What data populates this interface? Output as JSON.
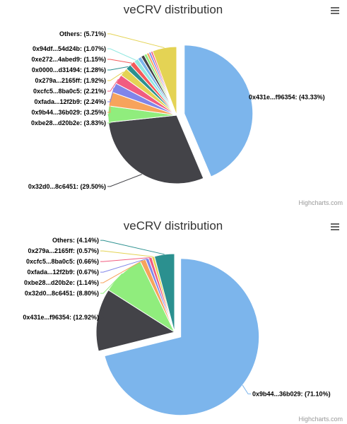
{
  "charts": [
    {
      "title": "veCRV distribution",
      "credit": "Highcharts.com",
      "menu_icon": "hamburger-menu-icon",
      "chart_data": {
        "type": "pie",
        "title": "veCRV distribution",
        "slices": [
          {
            "name": "0x431e...f96354",
            "value": 43.33,
            "color": "#7cb5ec",
            "sliced": true
          },
          {
            "name": "0x32d0...8c6451",
            "value": 29.5,
            "color": "#434348"
          },
          {
            "name": "0xbe28...d20b2e",
            "value": 3.83,
            "color": "#90ed7d"
          },
          {
            "name": "0x9b44...36b029",
            "value": 3.25,
            "color": "#f7a35c"
          },
          {
            "name": "0xfada...12f2b9",
            "value": 2.24,
            "color": "#8085e9"
          },
          {
            "name": "0xcfc5...8ba0c5",
            "value": 2.21,
            "color": "#f15c80"
          },
          {
            "name": "0x279a...2165ff",
            "value": 1.92,
            "color": "#e4d354"
          },
          {
            "name": "0x0000...d31494",
            "value": 1.28,
            "color": "#2b908f"
          },
          {
            "name": "0xe272...4abed9",
            "value": 1.15,
            "color": "#f45b5b"
          },
          {
            "name": "0x94df...54d24b",
            "value": 1.07,
            "color": "#91e8e1"
          },
          {
            "name": "",
            "value": 0.9,
            "color": "#7cb5ec"
          },
          {
            "name": "",
            "value": 0.8,
            "color": "#434348"
          },
          {
            "name": "",
            "value": 0.65,
            "color": "#90ed7d"
          },
          {
            "name": "",
            "value": 0.55,
            "color": "#f7a35c"
          },
          {
            "name": "",
            "value": 0.5,
            "color": "#8085e9"
          },
          {
            "name": "",
            "value": 0.45,
            "color": "#f15c80"
          },
          {
            "name": "Others",
            "value": 5.71,
            "color": "#e4d354"
          }
        ]
      }
    },
    {
      "title": "veCRV distribution",
      "credit": "Highcharts.com",
      "menu_icon": "hamburger-menu-icon",
      "chart_data": {
        "type": "pie",
        "title": "veCRV distribution",
        "slices": [
          {
            "name": "0x9b44...36b029",
            "value": 71.1,
            "color": "#7cb5ec",
            "sliced": true
          },
          {
            "name": "0x431e...f96354",
            "value": 12.92,
            "color": "#434348"
          },
          {
            "name": "0x32d0...8c6451",
            "value": 8.8,
            "color": "#90ed7d"
          },
          {
            "name": "0xbe28...d20b2e",
            "value": 1.14,
            "color": "#f7a35c"
          },
          {
            "name": "0xfada...12f2b9",
            "value": 0.67,
            "color": "#8085e9"
          },
          {
            "name": "0xcfc5...8ba0c5",
            "value": 0.66,
            "color": "#f15c80"
          },
          {
            "name": "0x279a...2165ff",
            "value": 0.57,
            "color": "#e4d354"
          },
          {
            "name": "Others",
            "value": 4.14,
            "color": "#2b908f"
          }
        ]
      }
    }
  ]
}
